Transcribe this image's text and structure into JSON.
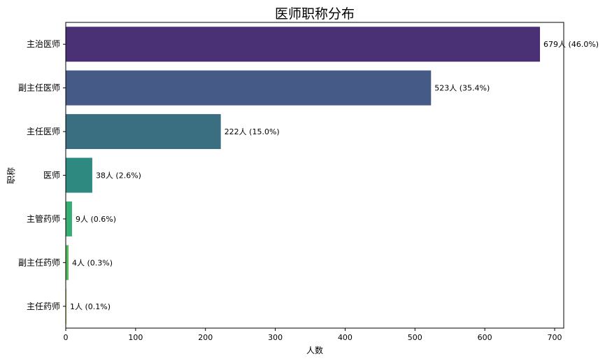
{
  "chart_data": {
    "type": "bar",
    "orientation": "horizontal",
    "title": "医师职称分布",
    "xlabel": "人数",
    "ylabel": "职称",
    "xlim": [
      0,
      713
    ],
    "xticks": [
      0,
      100,
      200,
      300,
      400,
      500,
      600,
      700
    ],
    "grid": false,
    "categories": [
      "主治医师",
      "副主任医师",
      "主任医师",
      "医师",
      "主管药师",
      "副主任药师",
      "主任药师"
    ],
    "values": [
      679,
      523,
      222,
      38,
      9,
      4,
      1
    ],
    "data_labels": [
      "679人 (46.0%)",
      "523人 (35.4%)",
      "222人 (15.0%)",
      "38人 (2.6%)",
      "9人 (0.6%)",
      "4人 (0.3%)",
      "1人 (0.1%)"
    ],
    "colors": [
      "#4a3175",
      "#455a86",
      "#3a6f82",
      "#2e8a81",
      "#38ad73",
      "#58ba5d",
      "#a7cf44"
    ]
  }
}
